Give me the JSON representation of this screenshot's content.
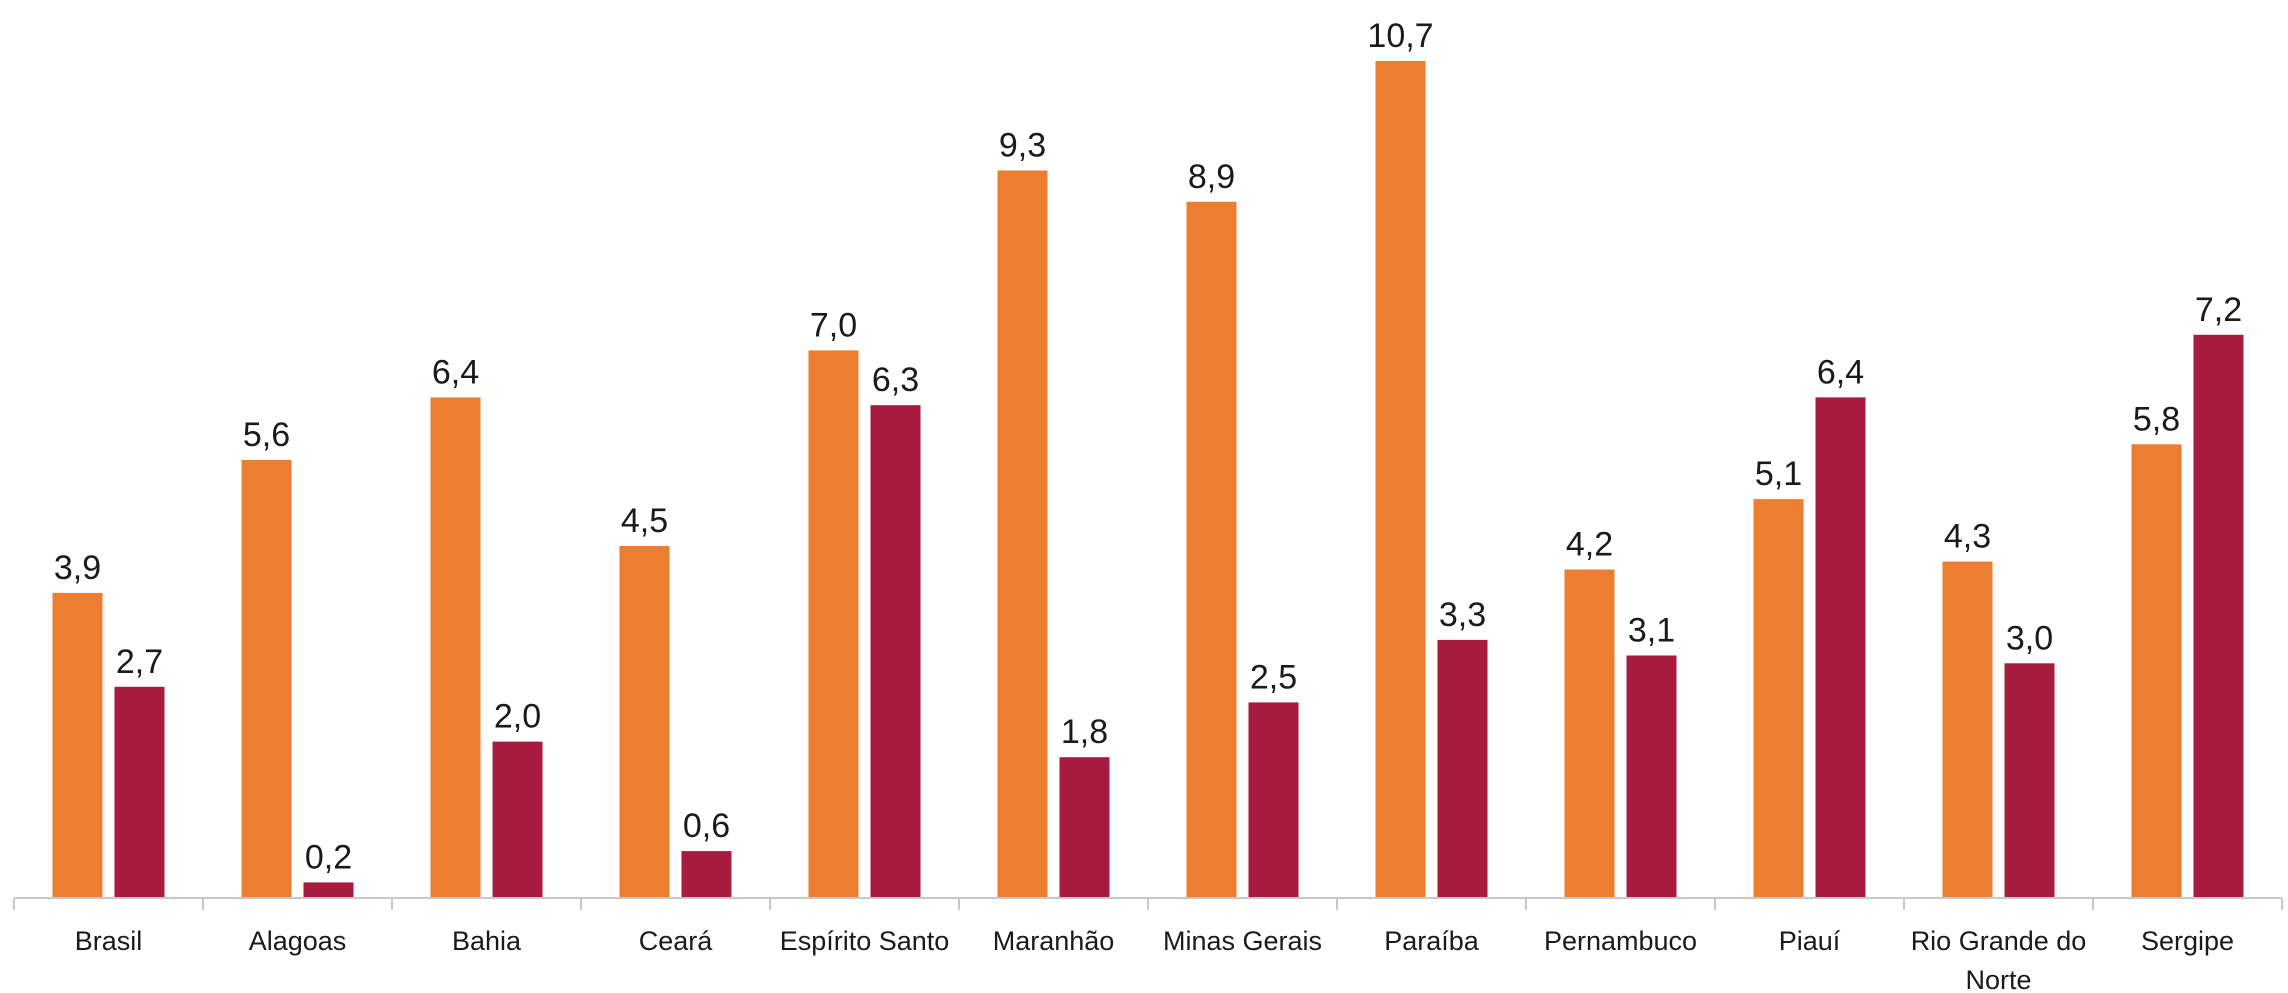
{
  "chart_data": {
    "type": "bar",
    "categories": [
      "Brasil",
      "Alagoas",
      "Bahia",
      "Ceará",
      "Espírito Santo",
      "Maranhão",
      "Minas Gerais",
      "Paraíba",
      "Pernambuco",
      "Piauí",
      "Rio Grande do Norte",
      "Sergipe"
    ],
    "category_lines": [
      [
        "Brasil"
      ],
      [
        "Alagoas"
      ],
      [
        "Bahia"
      ],
      [
        "Ceará"
      ],
      [
        "Espírito Santo"
      ],
      [
        "Maranhão"
      ],
      [
        "Minas Gerais"
      ],
      [
        "Paraíba"
      ],
      [
        "Pernambuco"
      ],
      [
        "Piauí"
      ],
      [
        "Rio Grande do",
        "Norte"
      ],
      [
        "Sergipe"
      ]
    ],
    "series": [
      {
        "color": "#ED7D31",
        "values": [
          3.9,
          5.6,
          6.4,
          4.5,
          7.0,
          9.3,
          8.9,
          10.7,
          4.2,
          5.1,
          4.3,
          5.8
        ],
        "labels": [
          "3,9",
          "5,6",
          "6,4",
          "4,5",
          "7,0",
          "9,3",
          "8,9",
          "10,7",
          "4,2",
          "5,1",
          "4,3",
          "5,8"
        ]
      },
      {
        "color": "#A71B3F",
        "values": [
          2.7,
          0.2,
          2.0,
          0.6,
          6.3,
          1.8,
          2.5,
          3.3,
          3.1,
          6.4,
          3.0,
          7.2
        ],
        "labels": [
          "2,7",
          "0,2",
          "2,0",
          "0,6",
          "6,3",
          "1,8",
          "2,5",
          "3,3",
          "3,1",
          "6,4",
          "3,0",
          "7,2"
        ]
      }
    ],
    "title": "",
    "xlabel": "",
    "ylabel": "",
    "ylim": [
      0,
      10.7
    ],
    "grid": false,
    "legend": "none",
    "data_labels": true
  }
}
